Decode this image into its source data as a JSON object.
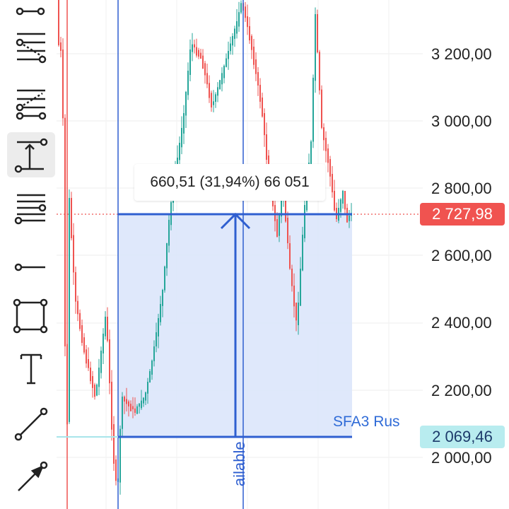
{
  "toolbar": {
    "tools": [
      {
        "name": "pitchfork-tool-icon",
        "active": false
      },
      {
        "name": "fib-retracement-icon",
        "active": false
      },
      {
        "name": "fib-extension-icon",
        "active": false
      },
      {
        "name": "price-range-measure-icon",
        "active": true
      },
      {
        "name": "parallel-lines-icon",
        "active": false
      },
      {
        "name": "horizontal-ray-icon",
        "active": false
      },
      {
        "name": "rectangle-icon",
        "active": false
      },
      {
        "name": "text-tool-icon",
        "active": false
      },
      {
        "name": "trend-line-icon",
        "active": false
      },
      {
        "name": "arrow-tool-icon",
        "active": false
      }
    ]
  },
  "chart": {
    "measure_label": "660,51 (31,94%) 66 051",
    "level_label": "SFA3 Rus",
    "vertical_line_label": "ailable",
    "current_price": "2 727,98",
    "level_price": "2 069,46",
    "price_ticks": [
      "3 200,00",
      "3 000,00",
      "2 800,00",
      "2 600,00",
      "2 400,00",
      "2 200,00",
      "2 000,00"
    ],
    "colors": {
      "up": "#26a69a",
      "down": "#ef5350",
      "measure_fill": "#dce6fb",
      "measure_line": "#2f5fd0",
      "price_badge": "#f05350",
      "level_badge": "#b8ecef"
    }
  }
}
